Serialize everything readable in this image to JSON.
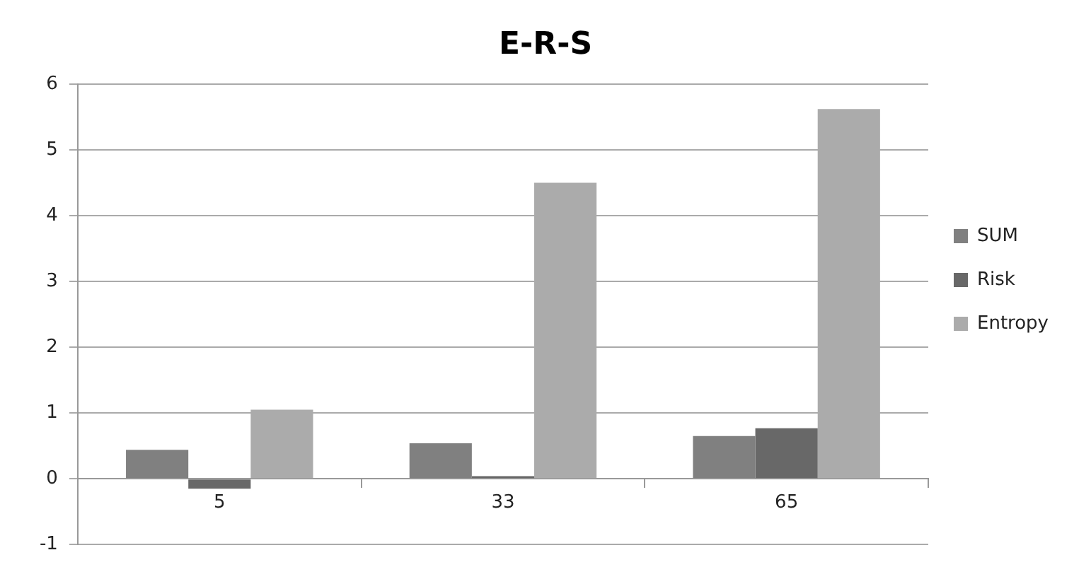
{
  "chart_data": {
    "type": "bar",
    "title": "E-R-S",
    "categories": [
      "5",
      "33",
      "65"
    ],
    "series": [
      {
        "name": "SUM",
        "color": "#808080",
        "values": [
          0.44,
          0.54,
          0.65
        ]
      },
      {
        "name": "Risk",
        "color": "#686868",
        "values": [
          -0.15,
          0.04,
          0.77
        ]
      },
      {
        "name": "Entropy",
        "color": "#ababab",
        "values": [
          1.05,
          4.5,
          5.62
        ]
      }
    ],
    "ylim": [
      -1,
      6
    ],
    "yticks": [
      -1,
      0,
      1,
      2,
      3,
      4,
      5,
      6
    ],
    "grid": "y",
    "legend": "right"
  }
}
